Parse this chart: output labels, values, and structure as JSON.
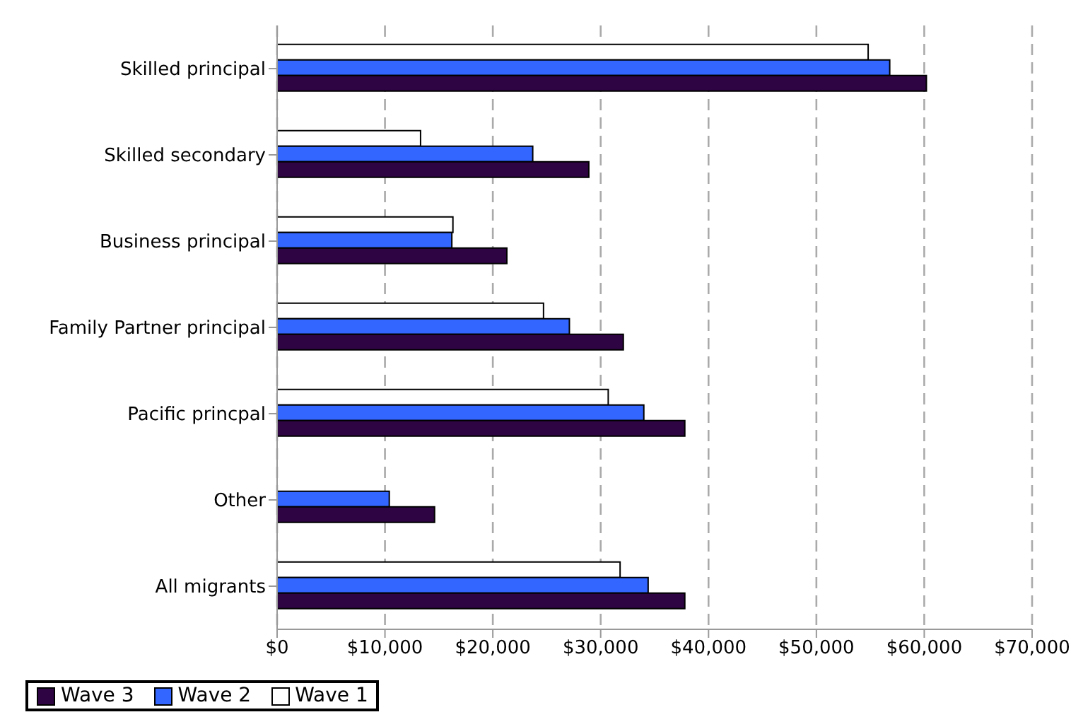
{
  "chart_data": {
    "type": "bar",
    "orientation": "horizontal",
    "categories": [
      "Skilled principal",
      "Skilled secondary",
      "Business principal",
      "Family Partner principal",
      "Pacific princpal",
      "Other",
      "All migrants"
    ],
    "series": [
      {
        "name": "Wave 3",
        "color": "#2e0442",
        "values": [
          60200,
          28900,
          21300,
          32100,
          37800,
          14600,
          37800
        ]
      },
      {
        "name": "Wave 2",
        "color": "#3366ff",
        "values": [
          56800,
          23700,
          16200,
          27100,
          34000,
          10400,
          34400
        ]
      },
      {
        "name": "Wave 1",
        "color": "#ffffff",
        "values": [
          54800,
          13300,
          16300,
          24700,
          30700,
          null,
          31800
        ]
      }
    ],
    "xlim": [
      0,
      70000
    ],
    "xticks": [
      {
        "value": 0,
        "label": "$0"
      },
      {
        "value": 10000,
        "label": "$10,000"
      },
      {
        "value": 20000,
        "label": "$20,000"
      },
      {
        "value": 30000,
        "label": "$30,000"
      },
      {
        "value": 40000,
        "label": "$40,000"
      },
      {
        "value": 50000,
        "label": "$50,000"
      },
      {
        "value": 60000,
        "label": "$60,000"
      },
      {
        "value": 70000,
        "label": "$70,000"
      }
    ],
    "grid": "x",
    "legend": "bottom left"
  }
}
